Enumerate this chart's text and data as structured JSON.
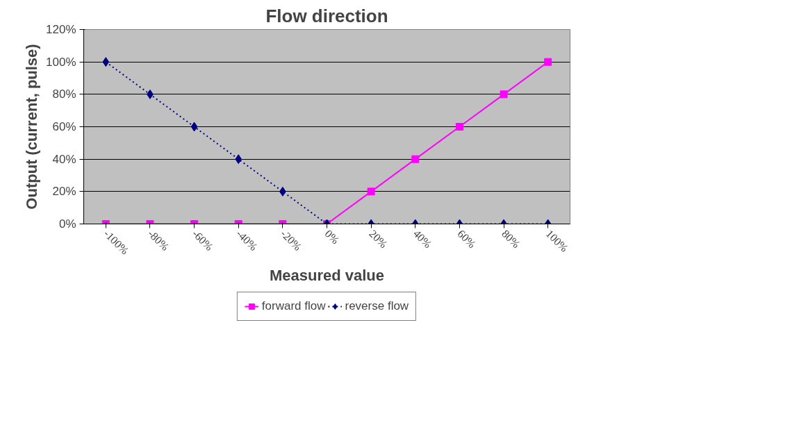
{
  "chart_data": {
    "type": "line",
    "title": "Flow direction",
    "xlabel": "Measured value",
    "ylabel": "Output (current, pulse)",
    "categories": [
      "-100%",
      "-80%",
      "-60%",
      "-40%",
      "-20%",
      "0%",
      "20%",
      "40%",
      "60%",
      "80%",
      "100%"
    ],
    "series": [
      {
        "name": "forward flow",
        "color": "#ff00ff",
        "marker": "square",
        "line_style": "solid",
        "values": [
          0,
          0,
          0,
          0,
          0,
          0,
          20,
          40,
          60,
          80,
          100
        ]
      },
      {
        "name": "reverse flow",
        "color": "#000080",
        "marker": "diamond",
        "line_style": "dotted",
        "values": [
          100,
          80,
          60,
          40,
          20,
          0,
          0,
          0,
          0,
          0,
          0
        ]
      }
    ],
    "ylim": [
      0,
      120
    ],
    "yticks": [
      {
        "value": 0,
        "label": "0%"
      },
      {
        "value": 20,
        "label": "20%"
      },
      {
        "value": 40,
        "label": "40%"
      },
      {
        "value": 60,
        "label": "60%"
      },
      {
        "value": 80,
        "label": "80%"
      },
      {
        "value": 100,
        "label": "100%"
      },
      {
        "value": 120,
        "label": "120%"
      }
    ],
    "grid": "y",
    "legend": "bottom"
  }
}
